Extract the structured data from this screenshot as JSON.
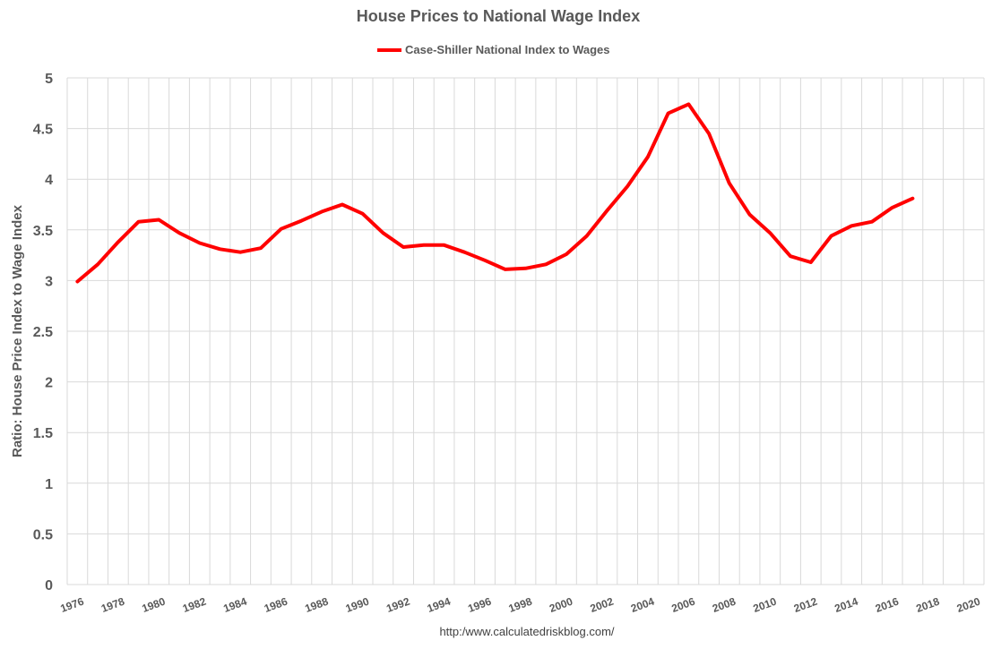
{
  "chart_data": {
    "type": "line",
    "title": "House Prices to National Wage Index",
    "ylabel": "Ratio: House Price Index to Wage Index",
    "xlabel": "",
    "ylim": [
      0,
      5
    ],
    "yticks": [
      "0",
      "0.5",
      "1",
      "1.5",
      "2",
      "2.5",
      "3",
      "3.5",
      "4",
      "4.5",
      "5"
    ],
    "xlim": [
      1976,
      2021
    ],
    "xticks": [
      "1976",
      "1978",
      "1980",
      "1982",
      "1984",
      "1986",
      "1988",
      "1990",
      "1992",
      "1994",
      "1996",
      "1998",
      "2000",
      "2002",
      "2004",
      "2006",
      "2008",
      "2010",
      "2012",
      "2014",
      "2016",
      "2018",
      "2020"
    ],
    "grid": "vertical",
    "legend_position": "top-center",
    "series": [
      {
        "name": "Case-Shiller National Index to Wages",
        "color": "#ff0000",
        "x": [
          1976,
          1977,
          1978,
          1979,
          1980,
          1981,
          1982,
          1983,
          1984,
          1985,
          1986,
          1987,
          1988,
          1989,
          1990,
          1991,
          1992,
          1993,
          1994,
          1995,
          1996,
          1997,
          1998,
          1999,
          2000,
          2001,
          2002,
          2003,
          2004,
          2005,
          2006,
          2007,
          2008,
          2009,
          2010,
          2011,
          2012,
          2013,
          2014,
          2015,
          2016,
          2017
        ],
        "values": [
          2.99,
          3.16,
          3.38,
          3.58,
          3.6,
          3.47,
          3.37,
          3.31,
          3.28,
          3.32,
          3.51,
          3.59,
          3.68,
          3.75,
          3.66,
          3.47,
          3.33,
          3.35,
          3.35,
          3.28,
          3.2,
          3.11,
          3.12,
          3.16,
          3.26,
          3.44,
          3.69,
          3.93,
          4.22,
          4.65,
          4.74,
          4.45,
          3.96,
          3.65,
          3.47,
          3.24,
          3.18,
          3.44,
          3.54,
          3.58,
          3.72,
          3.81
        ]
      }
    ],
    "source": "http:/www.calculatedriskblog.com/"
  }
}
